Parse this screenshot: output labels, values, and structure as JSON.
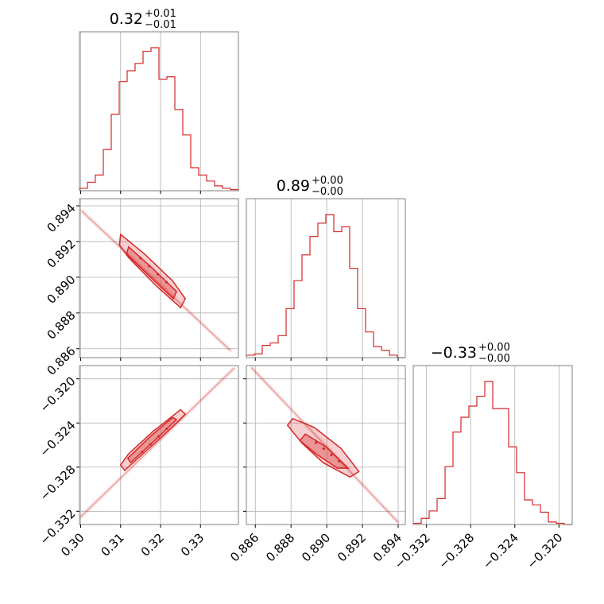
{
  "chart_data": {
    "type": "corner",
    "color": "#d62728",
    "grid": true,
    "params": [
      {
        "title": {
          "value": "0.32",
          "plus": "+0.01",
          "minus": "−0.01"
        },
        "range": [
          0.2997,
          0.3395
        ],
        "ticks": [
          0.3,
          0.31,
          0.32,
          0.33
        ],
        "tick_labels": [
          "0.30",
          "0.31",
          "0.32",
          "0.33"
        ],
        "hist": [
          2,
          7,
          13,
          34,
          63,
          90,
          99,
          105,
          115,
          118,
          92,
          94,
          67,
          46,
          19,
          13,
          8,
          4,
          2,
          1
        ]
      },
      {
        "title": {
          "value": "0.89",
          "plus": "+0.00",
          "minus": "−0.00"
        },
        "range": [
          0.8855,
          0.8944
        ],
        "ticks": [
          0.886,
          0.888,
          0.89,
          0.892,
          0.894
        ],
        "tick_labels": [
          "0.886",
          "0.888",
          "0.890",
          "0.892",
          "0.894"
        ],
        "hist": [
          2,
          3,
          10,
          12,
          18,
          40,
          63,
          84,
          99,
          110,
          117,
          103,
          107,
          73,
          40,
          21,
          9,
          6,
          2,
          0
        ]
      },
      {
        "title": {
          "value": "−0.33",
          "plus": "+0.00",
          "minus": "−0.00"
        },
        "range": [
          -0.3332,
          -0.3188
        ],
        "ticks": [
          -0.332,
          -0.328,
          -0.324,
          -0.32
        ],
        "tick_labels": [
          "−0.332",
          "−0.328",
          "−0.324",
          "−0.320"
        ],
        "hist": [
          1,
          5,
          11,
          21,
          47,
          75,
          87,
          96,
          104,
          116,
          94,
          94,
          63,
          42,
          20,
          16,
          10,
          2,
          1,
          0
        ]
      }
    ],
    "y_tick_labels": {
      "row1": [
        "0.886",
        "0.888",
        "0.890",
        "0.892",
        "0.894"
      ],
      "row2": [
        "−0.332",
        "−0.328",
        "−0.324",
        "−0.320"
      ]
    },
    "pairs": [
      {
        "row": 1,
        "col": 0,
        "line": [
          [
            0.3003,
            0.8937
          ],
          [
            0.3375,
            0.8859
          ]
        ],
        "outer_contour": [
          [
            0.31,
            0.8924
          ],
          [
            0.316,
            0.8913
          ],
          [
            0.323,
            0.8898
          ],
          [
            0.3262,
            0.8888
          ],
          [
            0.325,
            0.8883
          ],
          [
            0.319,
            0.8895
          ],
          [
            0.312,
            0.8911
          ],
          [
            0.3097,
            0.8918
          ]
        ],
        "inner_contour": [
          [
            0.312,
            0.8917
          ],
          [
            0.318,
            0.8905
          ],
          [
            0.324,
            0.8892
          ],
          [
            0.3232,
            0.8888
          ],
          [
            0.3175,
            0.89
          ],
          [
            0.3115,
            0.8913
          ]
        ]
      },
      {
        "row": 2,
        "col": 0,
        "line": [
          [
            0.3,
            -0.3325
          ],
          [
            0.3385,
            -0.319
          ]
        ],
        "outer_contour": [
          [
            0.311,
            -0.3283
          ],
          [
            0.318,
            -0.326
          ],
          [
            0.324,
            -0.324
          ],
          [
            0.3262,
            -0.3232
          ],
          [
            0.325,
            -0.3228
          ],
          [
            0.318,
            -0.3248
          ],
          [
            0.312,
            -0.3268
          ],
          [
            0.31,
            -0.3278
          ]
        ],
        "inner_contour": [
          [
            0.3125,
            -0.3276
          ],
          [
            0.3185,
            -0.3256
          ],
          [
            0.324,
            -0.3237
          ],
          [
            0.323,
            -0.3235
          ],
          [
            0.3175,
            -0.3252
          ],
          [
            0.3118,
            -0.3272
          ]
        ]
      },
      {
        "row": 2,
        "col": 1,
        "line": [
          [
            0.8858,
            -0.319
          ],
          [
            0.894,
            -0.333
          ]
        ],
        "outer_contour": [
          [
            0.8881,
            -0.3236
          ],
          [
            0.8893,
            -0.3244
          ],
          [
            0.8908,
            -0.3263
          ],
          [
            0.8918,
            -0.3284
          ],
          [
            0.8913,
            -0.3289
          ],
          [
            0.8898,
            -0.3276
          ],
          [
            0.8886,
            -0.3258
          ],
          [
            0.8878,
            -0.3242
          ]
        ],
        "inner_contour": [
          [
            0.8888,
            -0.325
          ],
          [
            0.89,
            -0.3262
          ],
          [
            0.8912,
            -0.3281
          ],
          [
            0.8906,
            -0.3281
          ],
          [
            0.8894,
            -0.3268
          ],
          [
            0.8885,
            -0.3256
          ]
        ]
      }
    ]
  }
}
